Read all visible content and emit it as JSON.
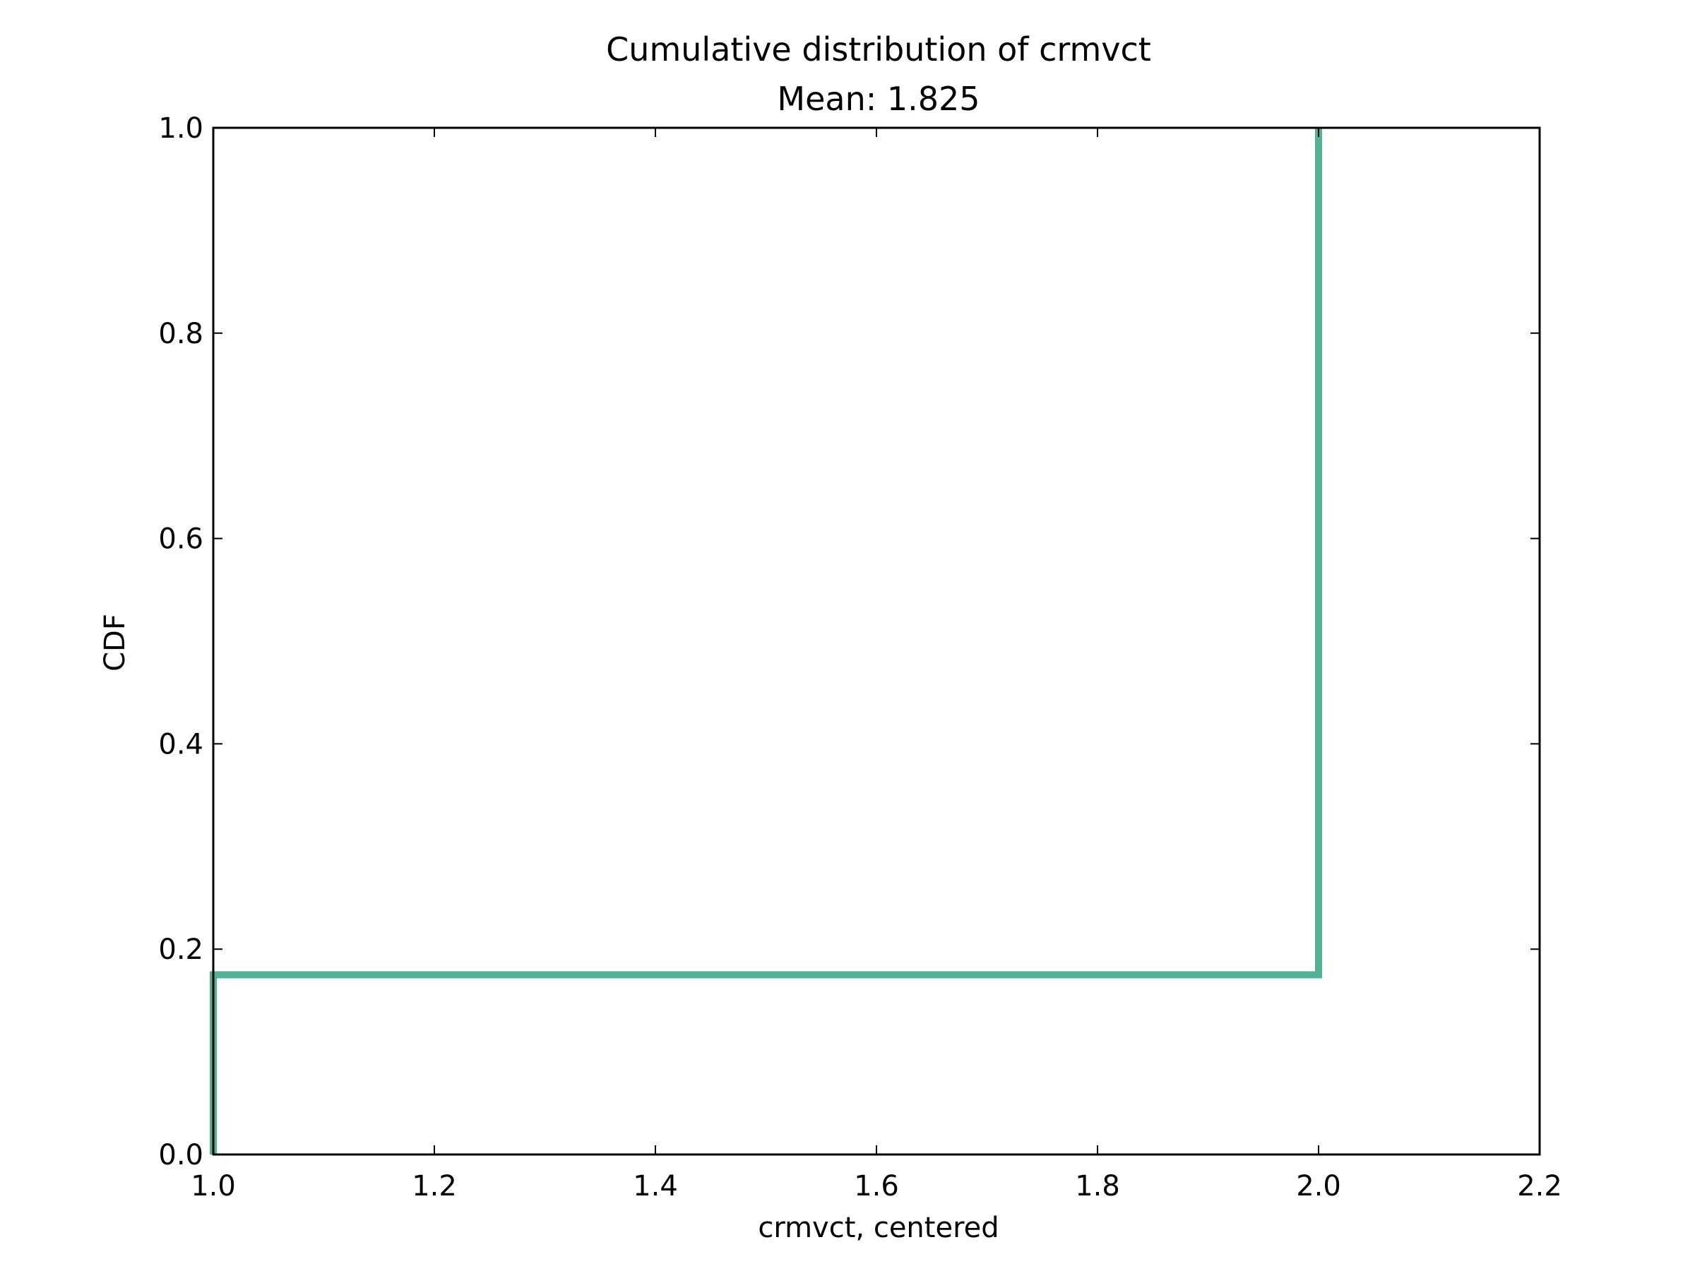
{
  "chart_data": {
    "type": "line",
    "title": "Cumulative distribution of crmvct",
    "subtitle": "Mean: 1.825",
    "xlabel": "crmvct, centered",
    "ylabel": "CDF",
    "xlim": [
      1.0,
      2.2
    ],
    "ylim": [
      0.0,
      1.0
    ],
    "x_ticks": [
      1.0,
      1.2,
      1.4,
      1.6,
      1.8,
      2.0,
      2.2
    ],
    "x_tick_labels": [
      "1.0",
      "1.2",
      "1.4",
      "1.6",
      "1.8",
      "2.0",
      "2.2"
    ],
    "y_ticks": [
      0.0,
      0.2,
      0.4,
      0.6,
      0.8,
      1.0
    ],
    "y_tick_labels": [
      "0.0",
      "0.2",
      "0.4",
      "0.6",
      "0.8",
      "1.0"
    ],
    "grid": false,
    "line_color": "#52b394",
    "series": [
      {
        "step": "post",
        "x": [
          1.0,
          1.0,
          2.0,
          2.0
        ],
        "y": [
          0.0,
          0.175,
          0.175,
          1.0
        ]
      }
    ]
  }
}
